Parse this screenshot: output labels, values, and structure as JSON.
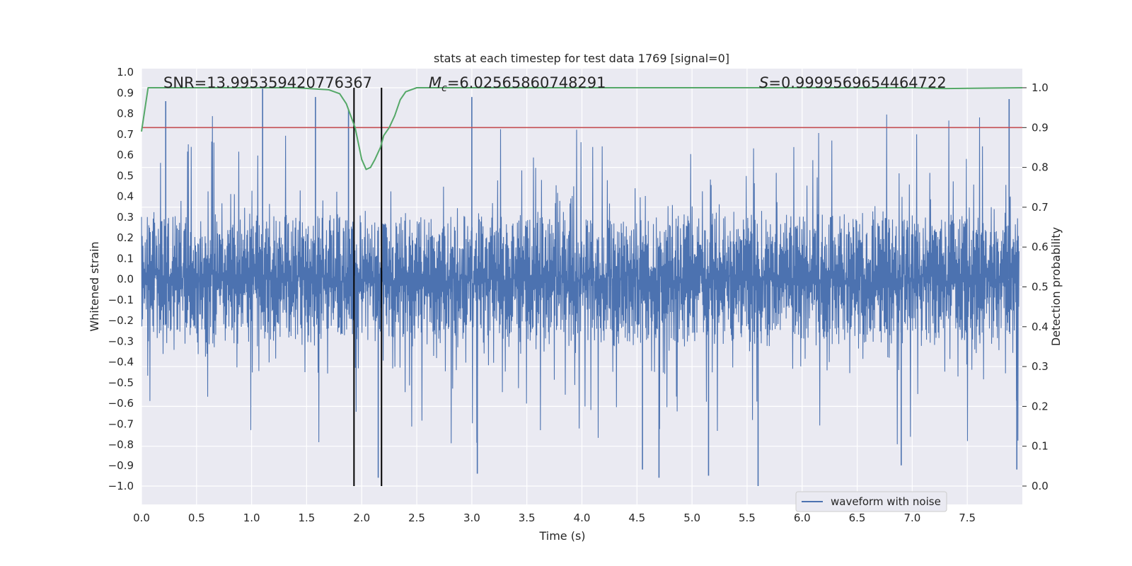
{
  "chart_data": {
    "type": "line",
    "title": "stats at each timestep for test data 1769 [signal=0]",
    "xlabel": "Time (s)",
    "ylabel_left": "Whitened strain",
    "ylabel_right": "Detection probability",
    "xlim": [
      0.0,
      8.0
    ],
    "ylim_left": [
      -1.0,
      1.0
    ],
    "ylim_right": [
      0.0,
      1.0
    ],
    "x_ticks": [
      "0.0",
      "0.5",
      "1.0",
      "1.5",
      "2.0",
      "2.5",
      "3.0",
      "3.5",
      "4.0",
      "4.5",
      "5.0",
      "5.5",
      "6.0",
      "6.5",
      "7.0",
      "7.5"
    ],
    "y_ticks_left": [
      "1.0",
      "0.9",
      "0.8",
      "0.7",
      "0.6",
      "0.5",
      "0.4",
      "0.3",
      "0.2",
      "0.1",
      "0.0",
      "−0.1",
      "−0.2",
      "−0.3",
      "−0.4",
      "−0.5",
      "−0.6",
      "−0.7",
      "−0.8",
      "−0.9",
      "−1.0"
    ],
    "y_ticks_right": [
      "1.0",
      "0.9",
      "0.8",
      "0.7",
      "0.6",
      "0.5",
      "0.4",
      "0.3",
      "0.2",
      "0.1",
      "0.0"
    ],
    "annotations": {
      "snr": "SNR=13.995359420776367",
      "mc_symbol": "M",
      "mc_sub": "c",
      "mc_value": "=6.02565860748291",
      "s_symbol": "S",
      "s_value": "=0.9999569654464722"
    },
    "series": [
      {
        "name": "waveform with noise",
        "axis": "left",
        "color": "#4c72b0",
        "description": "whitened strain noise, roughly within -0.5..0.6 with occasional spikes to +/-1.0",
        "spikes": [
          {
            "x": 0.22,
            "y": 0.86
          },
          {
            "x": 1.1,
            "y": 0.92
          },
          {
            "x": 1.58,
            "y": 0.88
          },
          {
            "x": 1.88,
            "y": 0.82
          },
          {
            "x": 2.15,
            "y": -0.96
          },
          {
            "x": 3.0,
            "y": 0.88
          },
          {
            "x": 3.05,
            "y": -0.94
          },
          {
            "x": 4.55,
            "y": -0.92
          },
          {
            "x": 4.7,
            "y": -0.96
          },
          {
            "x": 5.15,
            "y": -0.95
          },
          {
            "x": 5.6,
            "y": -1.0
          },
          {
            "x": 6.9,
            "y": -0.9
          },
          {
            "x": 7.88,
            "y": 0.87
          },
          {
            "x": 7.95,
            "y": -0.92
          }
        ]
      },
      {
        "name": "detection probability",
        "axis": "right",
        "color": "#55a868",
        "x": [
          0.0,
          0.06,
          0.2,
          0.6,
          1.0,
          1.4,
          1.7,
          1.8,
          1.86,
          1.9,
          1.94,
          1.97,
          2.0,
          2.04,
          2.08,
          2.12,
          2.17,
          2.2,
          2.25,
          2.3,
          2.35,
          2.4,
          2.5,
          3.0,
          4.0,
          5.0,
          6.0,
          7.0,
          7.3,
          8.0
        ],
        "y": [
          0.89,
          1.0,
          1.0,
          1.0,
          1.0,
          1.0,
          0.995,
          0.985,
          0.96,
          0.93,
          0.9,
          0.86,
          0.82,
          0.795,
          0.8,
          0.82,
          0.85,
          0.88,
          0.9,
          0.93,
          0.97,
          0.99,
          1.0,
          1.0,
          1.0,
          1.0,
          1.0,
          1.0,
          0.998,
          1.0
        ]
      },
      {
        "name": "threshold",
        "axis": "right",
        "color": "#c44e52",
        "y": 0.9
      }
    ],
    "event_lines_x": [
      1.93,
      2.18
    ],
    "event_line_color": "#000000",
    "legend": {
      "label": "waveform with noise",
      "position": "lower-right"
    },
    "grid": true,
    "background": "#eaeaf2"
  }
}
